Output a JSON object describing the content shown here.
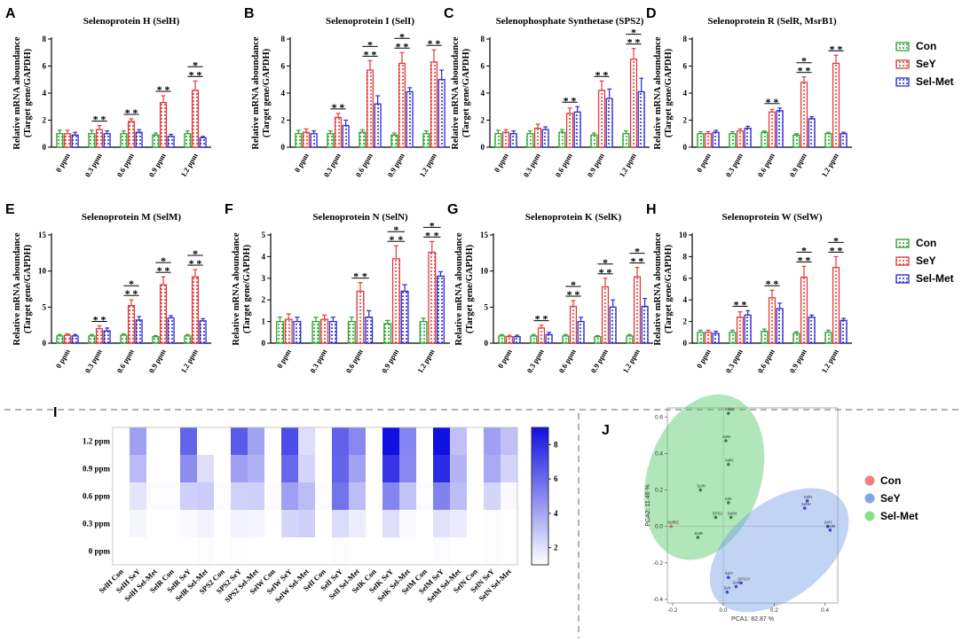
{
  "legend": {
    "entries": [
      "Con",
      "SeY",
      "Sel-Met"
    ],
    "colors": {
      "Con": "#2ca02c",
      "SeY": "#e03a3a",
      "Sel-Met": "#2a2ad0"
    }
  },
  "chart_data": [
    {
      "panel": "A",
      "type": "bar",
      "title": "Selenoprotein H (SelH)",
      "ylabel_line1": "Relative mRNA aboundance",
      "ylabel_line2": "(Target gene/GAPDH)",
      "categories": [
        "0 ppm",
        "0.3 ppm",
        "0.6 ppm",
        "0.9 ppm",
        "1.2 ppm"
      ],
      "ylim": [
        0,
        8
      ],
      "yticks": [
        "0",
        "2",
        "4",
        "6",
        "8"
      ],
      "series": [
        {
          "name": "Con",
          "values": [
            1.0,
            1.0,
            1.0,
            0.9,
            1.0
          ],
          "errors": [
            0.25,
            0.25,
            0.2,
            0.15,
            0.2
          ]
        },
        {
          "name": "SeY",
          "values": [
            1.0,
            1.3,
            1.9,
            3.3,
            4.2
          ],
          "errors": [
            0.25,
            0.3,
            0.2,
            0.5,
            0.7
          ]
        },
        {
          "name": "Sel-Met",
          "values": [
            0.9,
            1.0,
            1.1,
            0.8,
            0.7
          ],
          "errors": [
            0.2,
            0.2,
            0.2,
            0.15,
            0.1
          ]
        }
      ],
      "significance": [
        {
          "group": 1,
          "stars": 2
        },
        {
          "group": 2,
          "stars": 2
        },
        {
          "group": 3,
          "stars": 2
        },
        {
          "group": 4,
          "stars": 3
        }
      ]
    },
    {
      "panel": "B",
      "type": "bar",
      "title": "Selenoprotein I (SelI)",
      "ylabel_line1": "Relative mRNA aboundance",
      "ylabel_line2": "(Target gene/GAPDH)",
      "categories": [
        "0 ppm",
        "0.3 ppm",
        "0.6 ppm",
        "0.9 ppm",
        "1.2 ppm"
      ],
      "ylim": [
        0,
        8
      ],
      "yticks": [
        "0",
        "2",
        "4",
        "6",
        "8"
      ],
      "series": [
        {
          "name": "Con",
          "values": [
            1.0,
            1.0,
            1.1,
            0.9,
            1.0
          ],
          "errors": [
            0.25,
            0.2,
            0.2,
            0.15,
            0.2
          ]
        },
        {
          "name": "SeY",
          "values": [
            1.1,
            2.2,
            5.7,
            6.2,
            6.3
          ],
          "errors": [
            0.25,
            0.3,
            0.7,
            0.8,
            0.9
          ]
        },
        {
          "name": "Sel-Met",
          "values": [
            1.0,
            1.6,
            3.2,
            4.1,
            5.0
          ],
          "errors": [
            0.2,
            0.4,
            0.6,
            0.3,
            0.7
          ]
        }
      ],
      "significance": [
        {
          "group": 1,
          "stars": 2
        },
        {
          "group": 2,
          "stars": 3
        },
        {
          "group": 3,
          "stars": 3
        },
        {
          "group": 4,
          "stars": 2
        }
      ]
    },
    {
      "panel": "C",
      "type": "bar",
      "title": "Selenophosphate Synthetase (SPS2)",
      "ylabel_line1": "Relative mRNA aboundance",
      "ylabel_line2": "(Target gene/GAPDH)",
      "categories": [
        "0 ppm",
        "0.3 ppm",
        "0.6 ppm",
        "0.9 ppm",
        "1.2 ppm"
      ],
      "ylim": [
        0,
        8
      ],
      "yticks": [
        "0",
        "2",
        "4",
        "6",
        "8"
      ],
      "series": [
        {
          "name": "Con",
          "values": [
            1.0,
            1.0,
            1.1,
            0.9,
            1.0
          ],
          "errors": [
            0.25,
            0.2,
            0.2,
            0.15,
            0.2
          ]
        },
        {
          "name": "SeY",
          "values": [
            1.1,
            1.4,
            2.5,
            4.2,
            6.5
          ],
          "errors": [
            0.2,
            0.3,
            0.4,
            0.7,
            0.8
          ]
        },
        {
          "name": "Sel-Met",
          "values": [
            1.0,
            1.3,
            2.6,
            3.6,
            4.1
          ],
          "errors": [
            0.2,
            0.2,
            0.4,
            0.7,
            1.0
          ]
        }
      ],
      "significance": [
        {
          "group": 2,
          "stars": 2
        },
        {
          "group": 3,
          "stars": 2
        },
        {
          "group": 4,
          "stars": 3
        }
      ]
    },
    {
      "panel": "D",
      "type": "bar",
      "title": "Selenoprotein R (SelR, MsrB1)",
      "ylabel_line1": "Relative mRNA aboundance",
      "ylabel_line2": "(Target gene/GAPDH)",
      "categories": [
        "0 ppm",
        "0.3 ppm",
        "0.6 ppm",
        "0.9 ppm",
        "1.2 ppm"
      ],
      "ylim": [
        0,
        8
      ],
      "yticks": [
        "0",
        "2",
        "4",
        "6",
        "8"
      ],
      "series": [
        {
          "name": "Con",
          "values": [
            1.0,
            1.0,
            1.1,
            0.9,
            1.0
          ],
          "errors": [
            0.15,
            0.15,
            0.1,
            0.1,
            0.1
          ]
        },
        {
          "name": "SeY",
          "values": [
            1.0,
            1.2,
            2.6,
            4.8,
            6.2
          ],
          "errors": [
            0.15,
            0.15,
            0.2,
            0.4,
            0.6
          ]
        },
        {
          "name": "Sel-Met",
          "values": [
            1.1,
            1.4,
            2.7,
            2.1,
            1.0
          ],
          "errors": [
            0.15,
            0.15,
            0.2,
            0.15,
            0.1
          ]
        }
      ],
      "significance": [
        {
          "group": 2,
          "stars": 2
        },
        {
          "group": 3,
          "stars": 3
        },
        {
          "group": 4,
          "stars": 2
        }
      ]
    },
    {
      "panel": "E",
      "type": "bar",
      "title": "Selenoprotein M (SelM)",
      "ylabel_line1": "Relative mRNA aboundance",
      "ylabel_line2": "(Target gene/GAPDH)",
      "categories": [
        "0 ppm",
        "0.3 ppm",
        "0.6 ppm",
        "0.9 ppm",
        "1.2 ppm"
      ],
      "ylim": [
        0,
        15
      ],
      "yticks": [
        "0",
        "5",
        "10",
        "15"
      ],
      "series": [
        {
          "name": "Con",
          "values": [
            1.0,
            1.0,
            1.1,
            0.9,
            1.0
          ],
          "errors": [
            0.2,
            0.2,
            0.2,
            0.15,
            0.2
          ]
        },
        {
          "name": "SeY",
          "values": [
            1.1,
            2.0,
            5.2,
            8.1,
            9.2
          ],
          "errors": [
            0.2,
            0.4,
            0.8,
            1.1,
            1.0
          ]
        },
        {
          "name": "Sel-Met",
          "values": [
            1.0,
            1.7,
            3.2,
            3.5,
            3.1
          ],
          "errors": [
            0.2,
            0.4,
            0.5,
            0.3,
            0.3
          ]
        }
      ],
      "significance": [
        {
          "group": 1,
          "stars": 2
        },
        {
          "group": 2,
          "stars": 3
        },
        {
          "group": 3,
          "stars": 3
        },
        {
          "group": 4,
          "stars": 3
        }
      ]
    },
    {
      "panel": "F",
      "type": "bar",
      "title": "Selenoprotein N (SelN)",
      "ylabel_line1": "Relative mRNA aboundance",
      "ylabel_line2": "(Target gene/GAPDH)",
      "categories": [
        "0 ppm",
        "0.3 ppm",
        "0.6 ppm",
        "0.9 ppm",
        "1.2 ppm"
      ],
      "ylim": [
        0,
        5
      ],
      "yticks": [
        "0",
        "1",
        "2",
        "3",
        "4",
        "5"
      ],
      "series": [
        {
          "name": "Con",
          "values": [
            1.0,
            1.0,
            1.0,
            0.9,
            1.0
          ],
          "errors": [
            0.2,
            0.2,
            0.2,
            0.15,
            0.15
          ]
        },
        {
          "name": "SeY",
          "values": [
            1.1,
            1.1,
            2.4,
            3.9,
            4.2
          ],
          "errors": [
            0.25,
            0.2,
            0.4,
            0.6,
            0.5
          ]
        },
        {
          "name": "Sel-Met",
          "values": [
            1.0,
            1.0,
            1.2,
            2.4,
            3.1
          ],
          "errors": [
            0.2,
            0.2,
            0.3,
            0.3,
            0.2
          ]
        }
      ],
      "significance": [
        {
          "group": 2,
          "stars": 2
        },
        {
          "group": 3,
          "stars": 3
        },
        {
          "group": 4,
          "stars": 3
        }
      ]
    },
    {
      "panel": "G",
      "type": "bar",
      "title": "Selenoprotein K (SelK)",
      "ylabel_line1": "Relative mRNA aboundance",
      "ylabel_line2": "(Target gene/GAPDH)",
      "categories": [
        "0 ppm",
        "0.3 ppm",
        "0.6 ppm",
        "0.9 ppm",
        "1.2 ppm"
      ],
      "ylim": [
        0,
        15
      ],
      "yticks": [
        "0",
        "5",
        "10",
        "15"
      ],
      "series": [
        {
          "name": "Con",
          "values": [
            1.0,
            1.0,
            1.0,
            0.9,
            1.0
          ],
          "errors": [
            0.2,
            0.2,
            0.2,
            0.15,
            0.2
          ]
        },
        {
          "name": "SeY",
          "values": [
            0.9,
            2.1,
            5.1,
            7.8,
            9.2
          ],
          "errors": [
            0.2,
            0.4,
            0.8,
            1.2,
            1.3
          ]
        },
        {
          "name": "Sel-Met",
          "values": [
            0.9,
            1.2,
            3.0,
            5.0,
            5.1
          ],
          "errors": [
            0.2,
            0.3,
            0.6,
            1.0,
            1.1
          ]
        }
      ],
      "significance": [
        {
          "group": 1,
          "stars": 2
        },
        {
          "group": 2,
          "stars": 3
        },
        {
          "group": 3,
          "stars": 3
        },
        {
          "group": 4,
          "stars": 3
        }
      ]
    },
    {
      "panel": "H",
      "type": "bar",
      "title": "Selenoprotein W (SelW)",
      "ylabel_line1": "Relative mRNA aboundance",
      "ylabel_line2": "(Target gene/GAPDH)",
      "categories": [
        "0 ppm",
        "0.3 ppm",
        "0.6 ppm",
        "0.9 ppm",
        "1.2 ppm"
      ],
      "ylim": [
        0,
        10
      ],
      "yticks": [
        "0",
        "2",
        "4",
        "6",
        "8",
        "10"
      ],
      "series": [
        {
          "name": "Con",
          "values": [
            1.0,
            1.0,
            1.1,
            0.9,
            1.0
          ],
          "errors": [
            0.2,
            0.2,
            0.2,
            0.15,
            0.2
          ]
        },
        {
          "name": "SeY",
          "values": [
            1.0,
            2.4,
            4.2,
            6.1,
            7.0
          ],
          "errors": [
            0.2,
            0.5,
            0.7,
            1.0,
            1.0
          ]
        },
        {
          "name": "Sel-Met",
          "values": [
            0.9,
            2.6,
            3.2,
            2.4,
            2.1
          ],
          "errors": [
            0.2,
            0.4,
            0.5,
            0.2,
            0.2
          ]
        }
      ],
      "significance": [
        {
          "group": 1,
          "stars": 2
        },
        {
          "group": 2,
          "stars": 2
        },
        {
          "group": 3,
          "stars": 3
        },
        {
          "group": 4,
          "stars": 3
        }
      ]
    },
    {
      "panel": "I",
      "type": "heatmap",
      "rows": [
        "1.2 ppm",
        "0.9 ppm",
        "0.6 ppm",
        "0.3 ppm",
        "0 ppm"
      ],
      "columns": [
        "SelH Con",
        "SelH SeY",
        "SelH Sel-Met",
        "SelR Con",
        "SelR SeY",
        "SelR Sel-Met",
        "SPS2 Con",
        "SPS2 SeY",
        "SPS2 Sel-Met",
        "SelW Con",
        "SelW SeY",
        "SelW Sel-Met",
        "SelI Con",
        "SelI SeY",
        "SelI Sel-Met",
        "SelK Con",
        "SelK SeY",
        "SelK Sel-Met",
        "SelM Con",
        "SelM SeY",
        "SelM Sel-Met",
        "SelN Con",
        "SelN SeY",
        "SelN Sel-Met"
      ],
      "values": [
        [
          1.0,
          4.2,
          0.7,
          1.0,
          6.2,
          1.0,
          1.0,
          6.5,
          4.1,
          1.0,
          7.0,
          2.1,
          1.0,
          6.3,
          5.0,
          1.0,
          9.2,
          5.1,
          1.0,
          9.2,
          3.1,
          1.0,
          4.2,
          3.1
        ],
        [
          0.9,
          3.3,
          0.8,
          0.9,
          4.8,
          2.1,
          0.9,
          4.2,
          3.6,
          0.9,
          6.1,
          2.4,
          0.9,
          6.2,
          4.1,
          0.9,
          7.8,
          5.0,
          0.9,
          8.1,
          3.5,
          0.9,
          3.9,
          2.4
        ],
        [
          1.0,
          1.9,
          1.1,
          1.1,
          2.6,
          2.7,
          1.1,
          2.5,
          2.6,
          1.1,
          4.2,
          3.2,
          1.1,
          5.7,
          3.2,
          1.0,
          5.1,
          3.0,
          1.1,
          5.2,
          3.2,
          1.0,
          2.4,
          1.2
        ],
        [
          1.0,
          1.3,
          1.0,
          1.0,
          1.2,
          1.4,
          1.0,
          1.4,
          1.3,
          1.0,
          2.4,
          2.6,
          1.0,
          2.2,
          1.6,
          1.0,
          2.1,
          1.2,
          1.0,
          2.0,
          1.7,
          1.0,
          1.1,
          1.0
        ],
        [
          1.0,
          1.0,
          0.9,
          1.0,
          1.0,
          1.1,
          1.0,
          1.1,
          1.0,
          1.0,
          1.0,
          0.9,
          1.0,
          1.1,
          1.0,
          1.0,
          0.9,
          0.9,
          1.0,
          1.1,
          1.0,
          1.0,
          1.1,
          1.0
        ]
      ],
      "colorbar_ticks": [
        "2",
        "4",
        "6",
        "8"
      ],
      "colorbar_range": [
        1,
        9
      ]
    },
    {
      "panel": "J",
      "type": "scatter",
      "xlabel": "PCA1: 82.87 %",
      "ylabel": "PCA2: 11.46 %",
      "xlim": [
        -0.22,
        0.45
      ],
      "ylim": [
        -0.42,
        0.65
      ],
      "xticks": [
        "-0.2",
        "0.0",
        "0.2",
        "0.4"
      ],
      "yticks": [
        "-0.4",
        "-0.2",
        "0.0",
        "0.2",
        "0.4",
        "0.6"
      ],
      "legend": [
        "Con",
        "SeY",
        "Sel-Met"
      ],
      "points": [
        {
          "label": "SelM",
          "group": "Sel-Met",
          "x": 0.02,
          "y": 0.62
        },
        {
          "label": "SelK",
          "group": "Sel-Met",
          "x": 0.01,
          "y": 0.47
        },
        {
          "label": "SelN",
          "group": "Sel-Met",
          "x": 0.02,
          "y": 0.34
        },
        {
          "label": "SelH",
          "group": "Sel-Met",
          "x": -0.09,
          "y": 0.2
        },
        {
          "label": "SelI",
          "group": "Sel-Met",
          "x": 0.02,
          "y": 0.13
        },
        {
          "label": "SPS2",
          "group": "Sel-Met",
          "x": -0.03,
          "y": 0.05
        },
        {
          "label": "SelW",
          "group": "Sel-Met",
          "x": 0.03,
          "y": 0.05
        },
        {
          "label": "SelR",
          "group": "Sel-Met",
          "x": -0.1,
          "y": -0.06
        },
        {
          "label": "SelRC",
          "group": "Con",
          "x": -0.205,
          "y": 0.0
        },
        {
          "label": "SelH",
          "group": "SeY",
          "x": 0.33,
          "y": 0.14
        },
        {
          "label": "SelW",
          "group": "SeY",
          "x": 0.32,
          "y": 0.1
        },
        {
          "label": "SelY",
          "group": "SeY",
          "x": 0.41,
          "y": 0.0
        },
        {
          "label": "SelR",
          "group": "SeY",
          "x": 0.42,
          "y": -0.02
        },
        {
          "label": "SelY",
          "group": "SeY",
          "x": 0.02,
          "y": -0.28
        },
        {
          "label": "SPS2Y",
          "group": "SeY",
          "x": 0.07,
          "y": -0.31
        },
        {
          "label": "SelK",
          "group": "SeY",
          "x": 0.05,
          "y": -0.33
        },
        {
          "label": "SelI",
          "group": "SeY",
          "x": 0.015,
          "y": -0.36
        }
      ]
    }
  ]
}
